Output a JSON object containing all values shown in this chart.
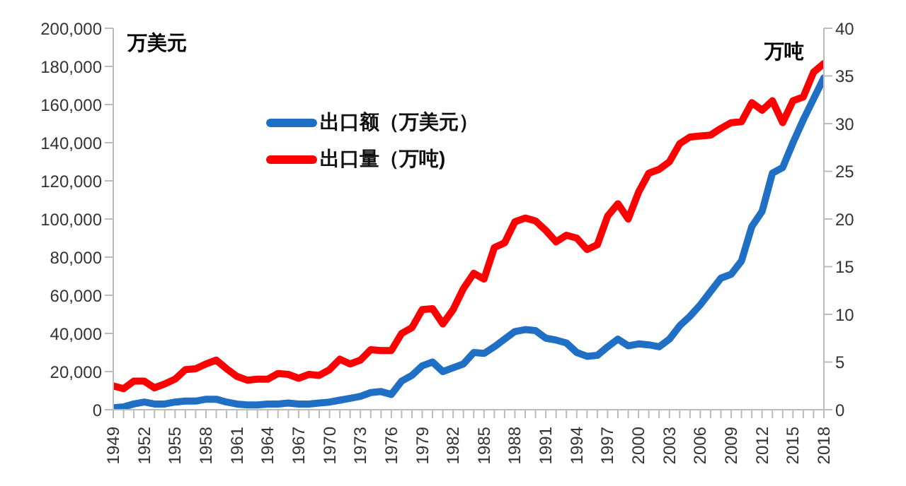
{
  "chart_data": {
    "type": "line",
    "ylabel": "万美元",
    "y2label": "万吨",
    "categories": [
      "1949",
      null,
      null,
      "1952",
      null,
      null,
      "1955",
      null,
      null,
      "1958",
      null,
      null,
      "1961",
      null,
      null,
      "1964",
      null,
      null,
      "1967",
      null,
      null,
      "1970",
      null,
      null,
      "1973",
      null,
      null,
      "1976",
      null,
      null,
      "1979",
      null,
      null,
      "1982",
      null,
      null,
      "1985",
      null,
      null,
      "1988",
      null,
      null,
      "1991",
      null,
      null,
      "1994",
      null,
      null,
      "1997",
      null,
      null,
      "2000",
      null,
      null,
      "2003",
      null,
      null,
      "2006",
      null,
      null,
      "2009",
      null,
      null,
      "2012",
      null,
      null,
      "2015",
      null,
      null,
      "2018"
    ],
    "series": [
      {
        "name": "出口额（万美元）",
        "color": "#1f6fc5",
        "values": [
          1000,
          1500,
          3000,
          4000,
          3000,
          3000,
          4000,
          4500,
          4500,
          5500,
          5500,
          4000,
          3000,
          2500,
          2500,
          3000,
          3000,
          3500,
          3000,
          3000,
          3500,
          4000,
          5000,
          6000,
          7000,
          9000,
          9500,
          8000,
          15000,
          18000,
          23000,
          25000,
          20000,
          22000,
          24000,
          30000,
          29500,
          33000,
          37000,
          41000,
          42000,
          41500,
          37500,
          36500,
          35000,
          30000,
          28000,
          28500,
          33000,
          37000,
          33500,
          34500,
          34000,
          33000,
          37000,
          44000,
          49000,
          55000,
          62000,
          69000,
          71000,
          78000,
          96000,
          104000,
          124000,
          127000,
          140000,
          152000,
          163000,
          174000
        ]
      },
      {
        "name": "出口量（万吨)",
        "color": "#ff0000",
        "axis": "y2",
        "values": [
          2.5,
          2.2,
          3,
          3,
          2.3,
          2.7,
          3.2,
          4.2,
          4.3,
          4.8,
          5.2,
          4.3,
          3.5,
          3.1,
          3.2,
          3.2,
          3.8,
          3.7,
          3.3,
          3.7,
          3.6,
          4.2,
          5.3,
          4.8,
          5.2,
          6.3,
          6.2,
          6.2,
          8,
          8.6,
          10.5,
          10.6,
          9,
          10.5,
          12.7,
          14.3,
          13.7,
          17,
          17.5,
          19.7,
          20.1,
          19.8,
          18.8,
          17.6,
          18.3,
          18,
          16.8,
          17.3,
          20.3,
          21.6,
          20,
          22.8,
          24.8,
          25.2,
          26,
          27.9,
          28.6,
          28.7,
          28.8,
          29.5,
          30.1,
          30.2,
          32.2,
          31.4,
          32.4,
          30.1,
          32.4,
          32.8,
          35.4,
          36.3
        ]
      }
    ],
    "ylim": [
      0,
      200000
    ],
    "yticks": [
      0,
      {
        "value": 20000,
        "label": "20,000"
      },
      {
        "value": 40000,
        "label": "40,000"
      },
      {
        "value": 60000,
        "label": "60,000"
      },
      {
        "value": 80000,
        "label": "80,000"
      },
      {
        "value": 100000,
        "label": "100,000"
      },
      {
        "value": 120000,
        "label": "120,000"
      },
      {
        "value": 140000,
        "label": "140,000"
      },
      {
        "value": 160000,
        "label": "160,000"
      },
      {
        "value": 180000,
        "label": "180,000"
      },
      {
        "value": 200000,
        "label": "200,000"
      }
    ],
    "y2lim": [
      0,
      40
    ],
    "y2ticks": [
      0,
      5,
      10,
      15,
      20,
      25,
      30,
      35,
      40
    ],
    "grid": false,
    "legend": "top",
    "marker": "none",
    "line_style": "solid"
  }
}
